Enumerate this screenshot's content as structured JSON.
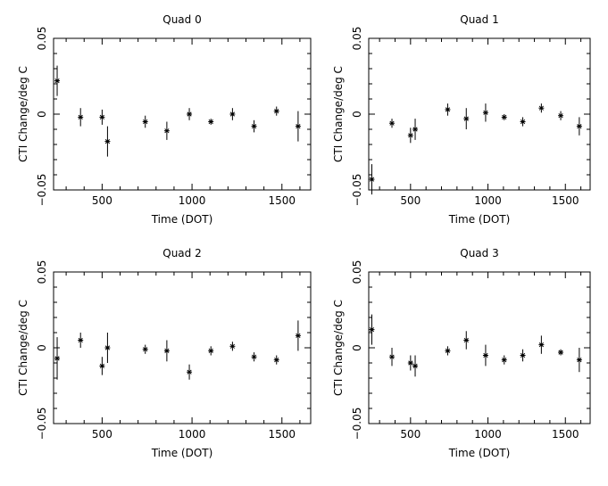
{
  "chart_data": [
    {
      "type": "scatter",
      "title": "Quad 0",
      "xlabel": "Time (DOT)",
      "ylabel": "CTI Change/deg C",
      "xlim": [
        230,
        1660
      ],
      "ylim": [
        -0.05,
        0.05
      ],
      "xticks": [
        500,
        1000,
        1500
      ],
      "xtick_labels": [
        "500",
        "1000",
        "1500"
      ],
      "yticks": [
        -0.05,
        0,
        0.05
      ],
      "ytick_labels": [
        "−0.05",
        "0",
        "0.05"
      ],
      "points": [
        {
          "x": 250,
          "y": 0.022,
          "err": 0.01
        },
        {
          "x": 380,
          "y": -0.002,
          "err": 0.006
        },
        {
          "x": 500,
          "y": -0.002,
          "err": 0.005
        },
        {
          "x": 530,
          "y": -0.018,
          "err": 0.01
        },
        {
          "x": 740,
          "y": -0.005,
          "err": 0.004
        },
        {
          "x": 860,
          "y": -0.011,
          "err": 0.006
        },
        {
          "x": 985,
          "y": 0.0,
          "err": 0.004
        },
        {
          "x": 1105,
          "y": -0.005,
          "err": 0.002
        },
        {
          "x": 1225,
          "y": 0.0,
          "err": 0.004
        },
        {
          "x": 1345,
          "y": -0.008,
          "err": 0.004
        },
        {
          "x": 1470,
          "y": 0.002,
          "err": 0.003
        },
        {
          "x": 1590,
          "y": -0.008,
          "err": 0.01
        }
      ]
    },
    {
      "type": "scatter",
      "title": "Quad 1",
      "xlabel": "Time (DOT)",
      "ylabel": "CTI Change/deg C",
      "xlim": [
        230,
        1660
      ],
      "ylim": [
        -0.05,
        0.05
      ],
      "xticks": [
        500,
        1000,
        1500
      ],
      "xtick_labels": [
        "500",
        "1000",
        "1500"
      ],
      "yticks": [
        -0.05,
        0,
        0.05
      ],
      "ytick_labels": [
        "−0.05",
        "0",
        "0.05"
      ],
      "points": [
        {
          "x": 250,
          "y": -0.043,
          "err": 0.01
        },
        {
          "x": 380,
          "y": -0.006,
          "err": 0.003
        },
        {
          "x": 500,
          "y": -0.014,
          "err": 0.005
        },
        {
          "x": 530,
          "y": -0.01,
          "err": 0.007
        },
        {
          "x": 740,
          "y": 0.003,
          "err": 0.004
        },
        {
          "x": 860,
          "y": -0.003,
          "err": 0.007
        },
        {
          "x": 985,
          "y": 0.001,
          "err": 0.006
        },
        {
          "x": 1105,
          "y": -0.002,
          "err": 0.002
        },
        {
          "x": 1225,
          "y": -0.005,
          "err": 0.003
        },
        {
          "x": 1345,
          "y": 0.004,
          "err": 0.003
        },
        {
          "x": 1470,
          "y": -0.001,
          "err": 0.003
        },
        {
          "x": 1590,
          "y": -0.008,
          "err": 0.006
        }
      ]
    },
    {
      "type": "scatter",
      "title": "Quad 2",
      "xlabel": "Time (DOT)",
      "ylabel": "CTI Change/deg C",
      "xlim": [
        230,
        1660
      ],
      "ylim": [
        -0.05,
        0.05
      ],
      "xticks": [
        500,
        1000,
        1500
      ],
      "xtick_labels": [
        "500",
        "1000",
        "1500"
      ],
      "yticks": [
        -0.05,
        0,
        0.05
      ],
      "ytick_labels": [
        "−0.05",
        "0",
        "0.05"
      ],
      "points": [
        {
          "x": 250,
          "y": -0.007,
          "err": 0.014
        },
        {
          "x": 380,
          "y": 0.005,
          "err": 0.005
        },
        {
          "x": 500,
          "y": -0.012,
          "err": 0.006
        },
        {
          "x": 530,
          "y": 0.0,
          "err": 0.01
        },
        {
          "x": 740,
          "y": -0.001,
          "err": 0.003
        },
        {
          "x": 860,
          "y": -0.002,
          "err": 0.007
        },
        {
          "x": 985,
          "y": -0.016,
          "err": 0.005
        },
        {
          "x": 1105,
          "y": -0.002,
          "err": 0.003
        },
        {
          "x": 1225,
          "y": 0.001,
          "err": 0.003
        },
        {
          "x": 1345,
          "y": -0.006,
          "err": 0.003
        },
        {
          "x": 1470,
          "y": -0.008,
          "err": 0.003
        },
        {
          "x": 1590,
          "y": 0.008,
          "err": 0.01
        }
      ]
    },
    {
      "type": "scatter",
      "title": "Quad 3",
      "xlabel": "Time (DOT)",
      "ylabel": "CTI Change/deg C",
      "xlim": [
        230,
        1660
      ],
      "ylim": [
        -0.05,
        0.05
      ],
      "xticks": [
        500,
        1000,
        1500
      ],
      "xtick_labels": [
        "500",
        "1000",
        "1500"
      ],
      "yticks": [
        -0.05,
        0,
        0.05
      ],
      "ytick_labels": [
        "−0.05",
        "0",
        "0.05"
      ],
      "points": [
        {
          "x": 250,
          "y": 0.012,
          "err": 0.01
        },
        {
          "x": 380,
          "y": -0.006,
          "err": 0.006
        },
        {
          "x": 500,
          "y": -0.01,
          "err": 0.005
        },
        {
          "x": 530,
          "y": -0.012,
          "err": 0.007
        },
        {
          "x": 740,
          "y": -0.002,
          "err": 0.003
        },
        {
          "x": 860,
          "y": 0.005,
          "err": 0.006
        },
        {
          "x": 985,
          "y": -0.005,
          "err": 0.007
        },
        {
          "x": 1105,
          "y": -0.008,
          "err": 0.003
        },
        {
          "x": 1225,
          "y": -0.005,
          "err": 0.004
        },
        {
          "x": 1345,
          "y": 0.002,
          "err": 0.006
        },
        {
          "x": 1470,
          "y": -0.003,
          "err": 0.002
        },
        {
          "x": 1590,
          "y": -0.008,
          "err": 0.008
        }
      ]
    }
  ]
}
